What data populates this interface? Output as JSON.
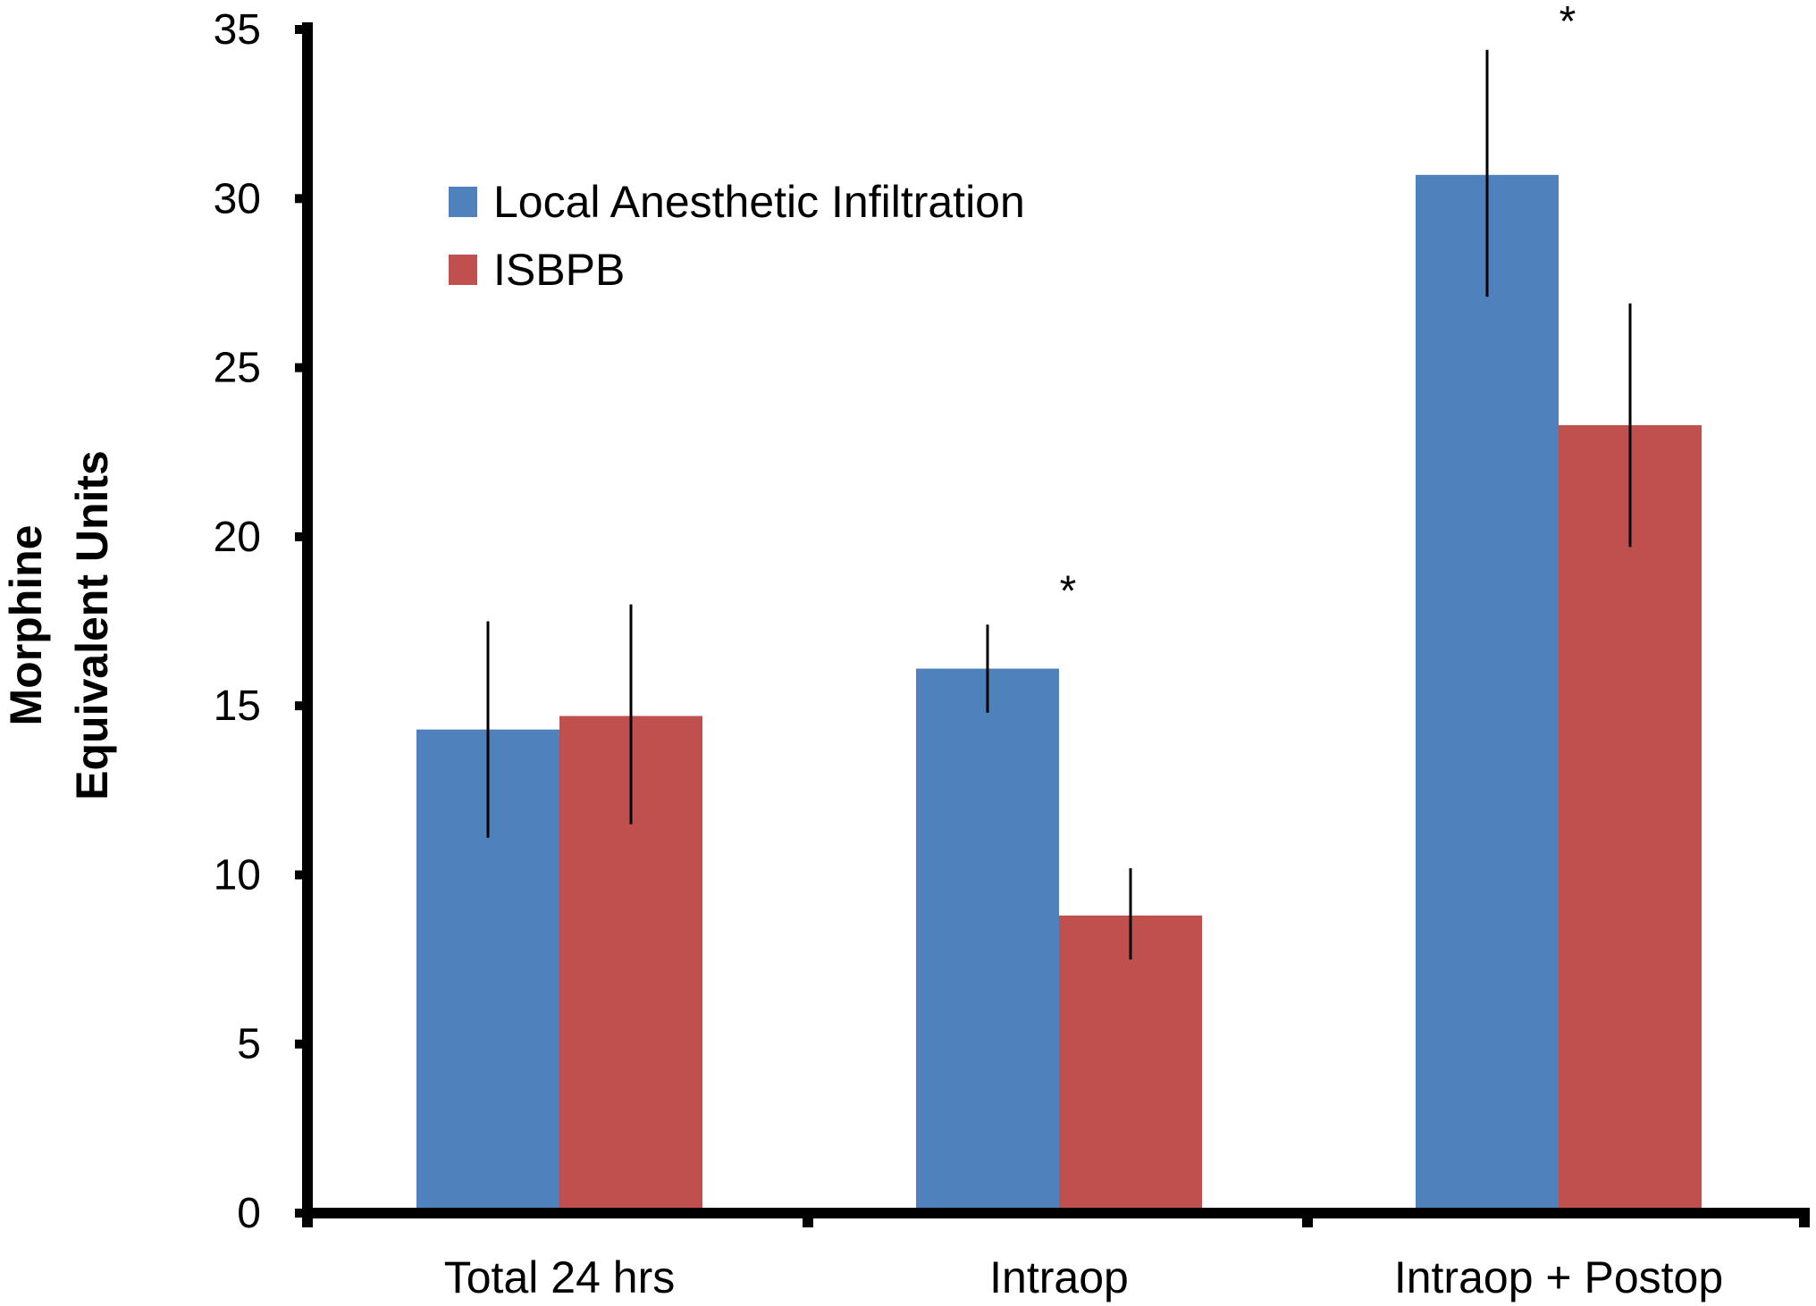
{
  "chart_data": {
    "type": "bar",
    "title": "",
    "xlabel": "",
    "ylabel_lines": [
      "Morphine",
      "Equivalent Units"
    ],
    "categories": [
      "Total 24 hrs",
      "Intraop",
      "Intraop + Postop"
    ],
    "series": [
      {
        "name": "Local Anesthetic Infiltration",
        "color": "#4F81BD",
        "values": [
          14.3,
          16.1,
          30.7
        ],
        "error_low": [
          11.1,
          14.8,
          27.1
        ],
        "error_high": [
          17.5,
          17.4,
          34.4
        ]
      },
      {
        "name": "ISBPB",
        "color": "#C0504D",
        "values": [
          14.7,
          8.8,
          23.3
        ],
        "error_low": [
          11.5,
          7.5,
          19.7
        ],
        "error_high": [
          18.0,
          10.2,
          26.9
        ]
      }
    ],
    "ylim": [
      0,
      35
    ],
    "yticks": [
      0,
      5,
      10,
      15,
      20,
      25,
      30,
      35
    ],
    "ytick_labels": [
      "0",
      "5",
      "10",
      "15",
      "20",
      "25",
      "30",
      "35"
    ],
    "grid": false,
    "legend_position": "top-left",
    "annotations": [
      {
        "text": "*",
        "category": "Intraop"
      },
      {
        "text": "*",
        "category": "Intraop + Postop"
      }
    ]
  }
}
